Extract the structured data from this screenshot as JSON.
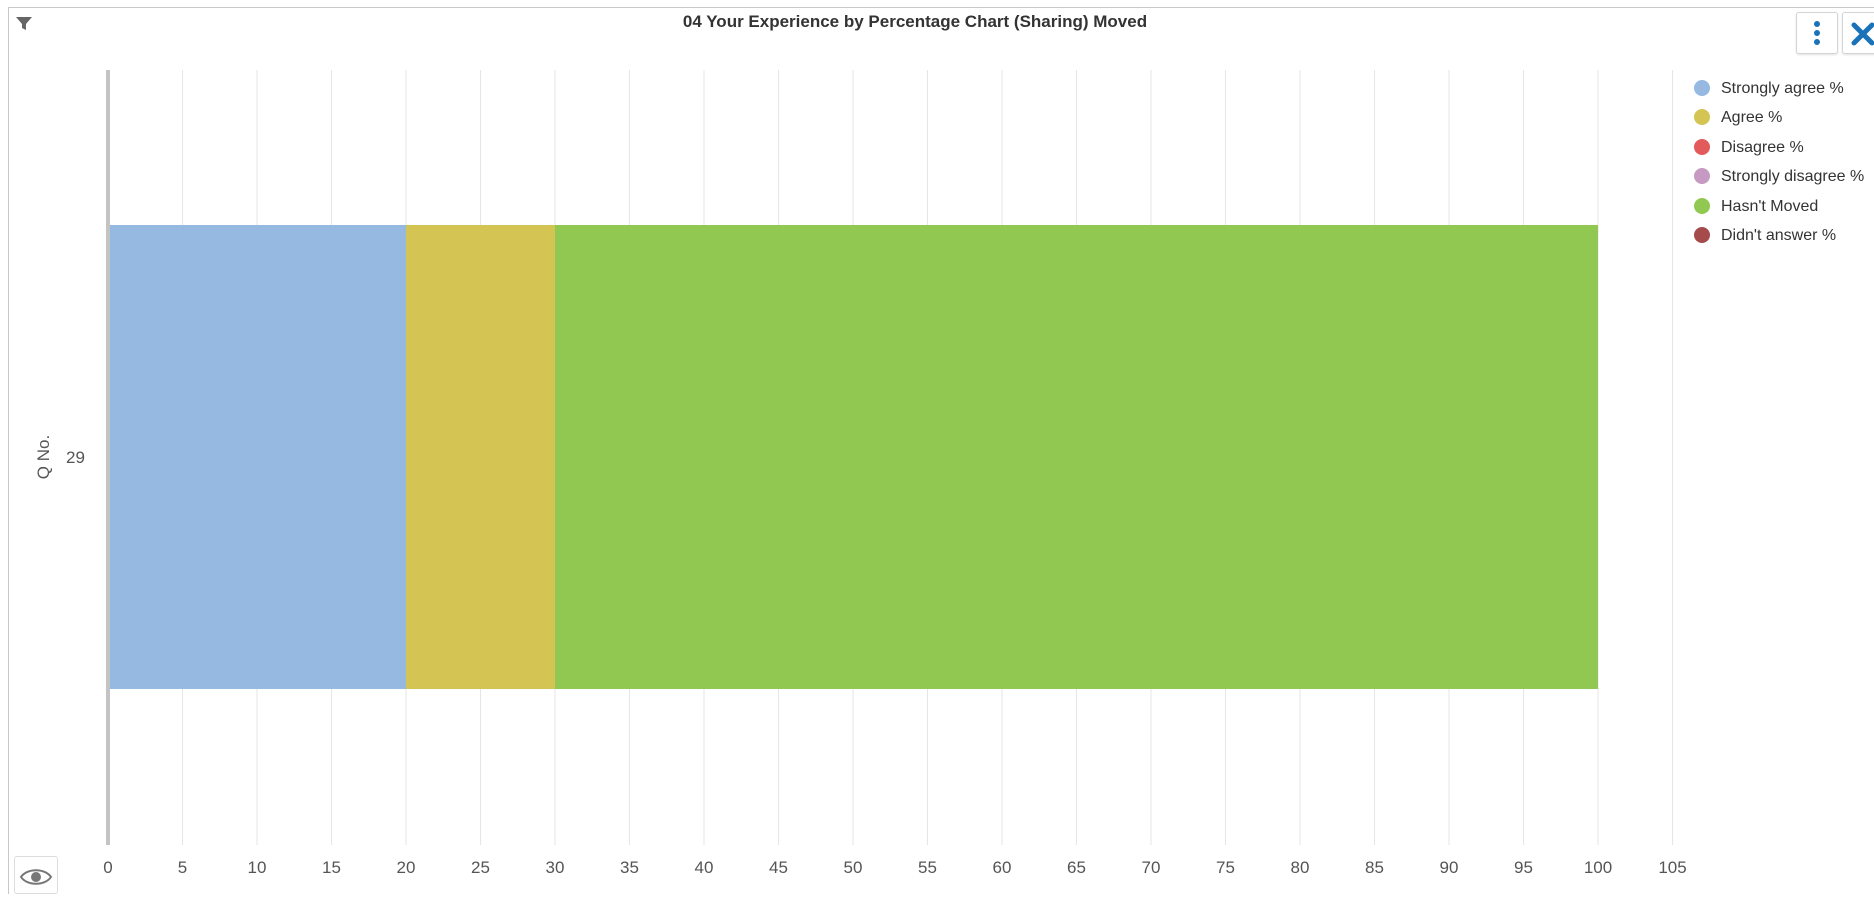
{
  "header": {
    "title": "04 Your Experience by Percentage Chart (Sharing) Moved"
  },
  "icons": {
    "filter": "filter-icon",
    "menu": "vertical-ellipsis-icon",
    "close": "close-icon",
    "eye": "eye-icon"
  },
  "colors": {
    "accent": "#1a73b8"
  },
  "chart_data": {
    "type": "bar",
    "orientation": "horizontal",
    "stacked": true,
    "title": "04 Your Experience by Percentage Chart (Sharing) Moved",
    "ylabel": "Q No.",
    "xlabel": "",
    "categories": [
      "29"
    ],
    "xlim": [
      0,
      105
    ],
    "x_ticks": [
      0,
      5,
      10,
      15,
      20,
      25,
      30,
      35,
      40,
      45,
      50,
      55,
      60,
      65,
      70,
      75,
      80,
      85,
      90,
      95,
      100,
      105
    ],
    "grid": true,
    "legend_position": "top-right",
    "series": [
      {
        "name": "Strongly agree %",
        "color": "#95b9e1",
        "values": [
          20
        ]
      },
      {
        "name": "Agree %",
        "color": "#d4c454",
        "values": [
          10
        ]
      },
      {
        "name": "Disagree %",
        "color": "#e35a5a",
        "values": [
          0
        ]
      },
      {
        "name": "Strongly disagree %",
        "color": "#c69ac2",
        "values": [
          0
        ]
      },
      {
        "name": "Hasn't Moved",
        "color": "#91c851",
        "values": [
          70
        ]
      },
      {
        "name": "Didn't answer %",
        "color": "#a64b4b",
        "values": [
          0
        ]
      }
    ]
  }
}
